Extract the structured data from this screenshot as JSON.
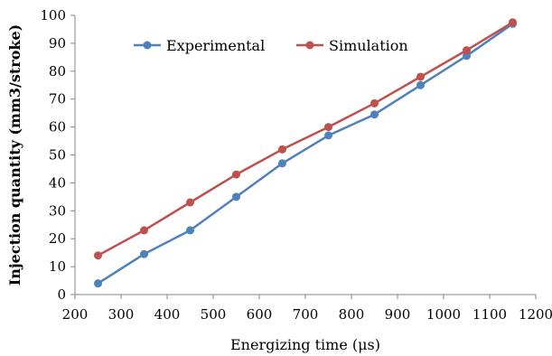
{
  "chart_data": {
    "type": "line",
    "title": "",
    "xlabel": "Energizing time (μs)",
    "ylabel": "Injection quantity (mm3/stroke)",
    "xlim": [
      200,
      1200
    ],
    "ylim": [
      0,
      100
    ],
    "xticks": [
      "200",
      "300",
      "400",
      "500",
      "600",
      "700",
      "800",
      "900",
      "1000",
      "1100",
      "1200"
    ],
    "yticks": [
      "0",
      "10",
      "20",
      "30",
      "40",
      "50",
      "60",
      "70",
      "80",
      "90",
      "100"
    ],
    "grid": false,
    "legend_position": "top-left",
    "x": [
      250,
      350,
      450,
      550,
      650,
      750,
      850,
      950,
      1050,
      1150
    ],
    "series": [
      {
        "name": "Experimental",
        "color": "#4f81bd",
        "values": [
          4,
          14.5,
          23,
          35,
          47,
          57,
          64.5,
          75,
          85.5,
          97
        ]
      },
      {
        "name": "Simulation",
        "color": "#c0504d",
        "values": [
          14,
          23,
          33,
          43,
          52,
          60,
          68.5,
          78,
          87.5,
          97.5
        ]
      }
    ]
  }
}
